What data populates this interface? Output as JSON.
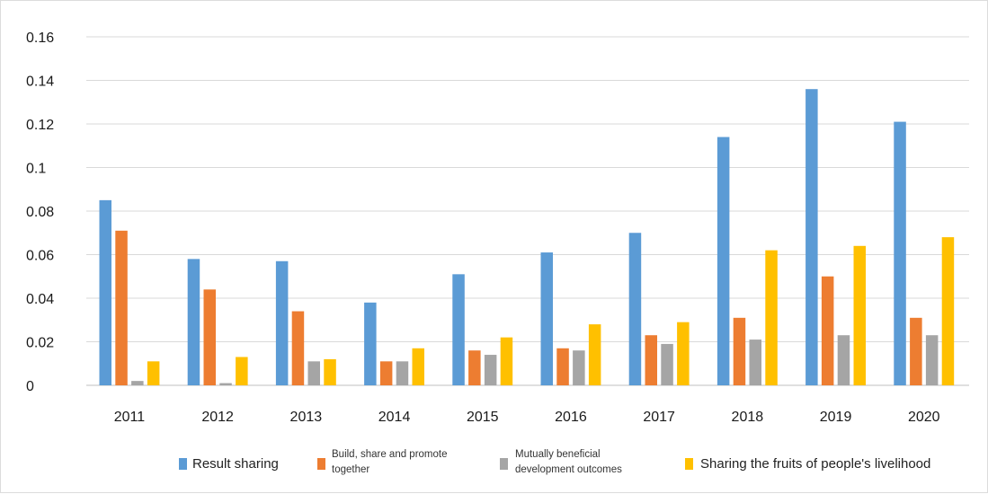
{
  "chart_data": {
    "type": "bar",
    "categories": [
      "2011",
      "2012",
      "2013",
      "2014",
      "2015",
      "2016",
      "2017",
      "2018",
      "2019",
      "2020"
    ],
    "series": [
      {
        "name": "Result sharing",
        "color": "#5b9bd5",
        "values": [
          0.085,
          0.058,
          0.057,
          0.038,
          0.051,
          0.061,
          0.07,
          0.114,
          0.136,
          0.121
        ]
      },
      {
        "name": "Build, share and promote together",
        "color": "#ed7d31",
        "values": [
          0.071,
          0.044,
          0.034,
          0.011,
          0.016,
          0.017,
          0.023,
          0.031,
          0.05,
          0.031
        ]
      },
      {
        "name": "Mutually beneficial development outcomes",
        "color": "#a5a5a5",
        "values": [
          0.002,
          0.001,
          0.011,
          0.011,
          0.014,
          0.016,
          0.019,
          0.021,
          0.023,
          0.023
        ]
      },
      {
        "name": "Sharing the fruits of people's livelihood",
        "color": "#ffc000",
        "values": [
          0.011,
          0.013,
          0.012,
          0.017,
          0.022,
          0.028,
          0.029,
          0.062,
          0.064,
          0.068
        ]
      }
    ],
    "ylim": [
      0,
      0.16
    ],
    "yticks": [
      "0",
      "0.02",
      "0.04",
      "0.06",
      "0.08",
      "0.1",
      "0.12",
      "0.14",
      "0.16"
    ],
    "grid": true,
    "legend": "bottom",
    "xlabel": "",
    "ylabel": "",
    "title": ""
  }
}
